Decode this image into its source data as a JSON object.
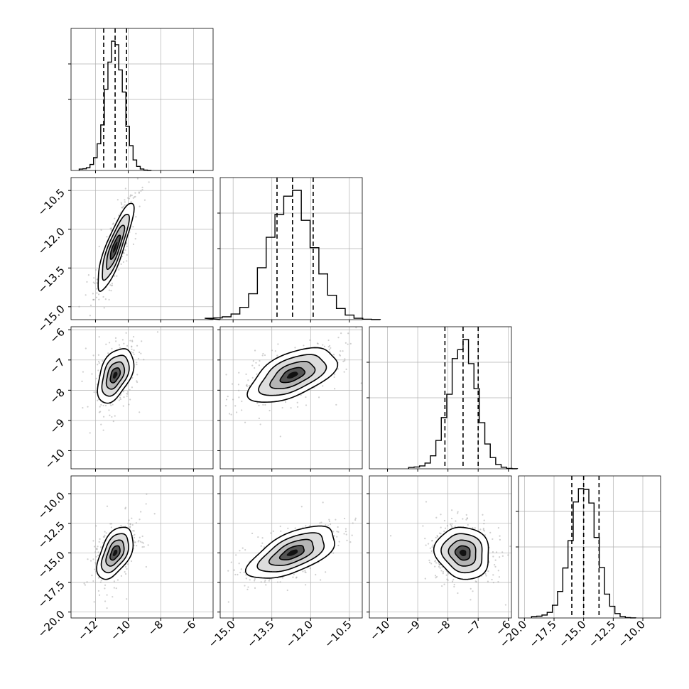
{
  "chart_data": {
    "type": "corner",
    "grid": true,
    "parameters": [
      {
        "range": [
          -13.5,
          -4.8
        ],
        "ticks": [
          -12,
          -10,
          -8,
          -6
        ],
        "tick_labels": [
          "−12",
          "−10",
          "−8",
          "−6"
        ]
      },
      {
        "range": [
          -15.5,
          -10.0
        ],
        "ticks": [
          -15.0,
          -13.5,
          -12.0,
          -10.5
        ],
        "tick_labels": [
          "−15.0",
          "−13.5",
          "−12.0",
          "−10.5"
        ]
      },
      {
        "range": [
          -10.6,
          -5.9
        ],
        "ticks": [
          -10,
          -9,
          -8,
          -7,
          -6
        ],
        "tick_labels": [
          "−10",
          "−9",
          "−8",
          "−7",
          "−6"
        ]
      },
      {
        "range": [
          -20.5,
          -8.5
        ],
        "ticks": [
          -20.0,
          -17.5,
          -15.0,
          -12.5,
          -10.0
        ],
        "tick_labels": [
          "−20.0",
          "−17.5",
          "−15.0",
          "−12.5",
          "−10.0"
        ]
      }
    ],
    "marginals": [
      {
        "param": 0,
        "mean": -10.8,
        "sd": 0.55,
        "quantiles": [
          -11.5,
          -10.8,
          -10.1
        ]
      },
      {
        "param": 1,
        "mean": -12.7,
        "sd": 0.85,
        "quantiles": [
          -13.3,
          -12.7,
          -11.9
        ]
      },
      {
        "param": 2,
        "mean": -7.5,
        "sd": 0.45,
        "quantiles": [
          -8.1,
          -7.5,
          -7.0
        ]
      },
      {
        "param": 3,
        "mean": -15.0,
        "sd": 1.1,
        "quantiles": [
          -16.0,
          -15.0,
          -13.7
        ]
      }
    ],
    "pairs": [
      {
        "x": 0,
        "y": 1,
        "corr": 0.85
      },
      {
        "x": 0,
        "y": 2,
        "corr": 0.45
      },
      {
        "x": 1,
        "y": 2,
        "corr": 0.55
      },
      {
        "x": 0,
        "y": 3,
        "corr": 0.5
      },
      {
        "x": 1,
        "y": 3,
        "corr": 0.6
      },
      {
        "x": 2,
        "y": 3,
        "corr": -0.1
      }
    ],
    "colors": {
      "line": "#000000",
      "grid": "#b0b0b0",
      "scatter": "#a0a0a0"
    }
  }
}
